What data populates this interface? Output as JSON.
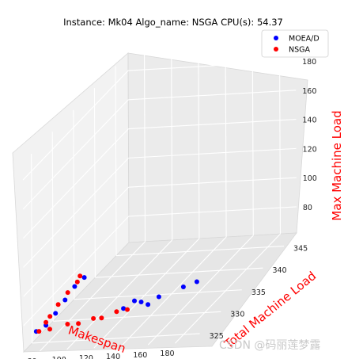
{
  "chart_data": {
    "type": "scatter",
    "title": "Instance: Mk04 Algo_name: NSGA CPU(s): 54.37",
    "xlabel": "Makespan",
    "ylabel": "Total Machine Load",
    "zlabel": "Max Machine Load",
    "xticks": [
      "80",
      "100",
      "120",
      "140",
      "160",
      "180"
    ],
    "yticks": [
      "325",
      "330",
      "335",
      "340",
      "345"
    ],
    "zticks": [
      "80",
      "100",
      "120",
      "140",
      "160",
      "180"
    ],
    "grid": true,
    "legend_position": "top-right",
    "series": [
      {
        "name": "MOEA/D",
        "color": "#0000ff",
        "points": [
          {
            "x": 68,
            "y": 326,
            "z": 67
          },
          {
            "x": 72,
            "y": 327,
            "z": 68
          },
          {
            "x": 76,
            "y": 328,
            "z": 73
          },
          {
            "x": 80,
            "y": 329,
            "z": 79
          },
          {
            "x": 84,
            "y": 330,
            "z": 85
          },
          {
            "x": 88,
            "y": 331,
            "z": 88
          },
          {
            "x": 120,
            "y": 330,
            "z": 68
          },
          {
            "x": 125,
            "y": 331,
            "z": 70
          },
          {
            "x": 130,
            "y": 331,
            "z": 69
          },
          {
            "x": 135,
            "y": 331,
            "z": 67
          },
          {
            "x": 140,
            "y": 332,
            "z": 69
          },
          {
            "x": 155,
            "y": 333,
            "z": 72
          },
          {
            "x": 165,
            "y": 333,
            "z": 75
          }
        ]
      },
      {
        "name": "NSGA",
        "color": "#ff0000",
        "points": [
          {
            "x": 70,
            "y": 326,
            "z": 67
          },
          {
            "x": 72,
            "y": 327,
            "z": 70
          },
          {
            "x": 75,
            "y": 327,
            "z": 74
          },
          {
            "x": 78,
            "y": 328,
            "z": 79
          },
          {
            "x": 82,
            "y": 329,
            "z": 84
          },
          {
            "x": 86,
            "y": 330,
            "z": 88
          },
          {
            "x": 88,
            "y": 330,
            "z": 92
          },
          {
            "x": 78,
            "y": 326,
            "z": 68
          },
          {
            "x": 88,
            "y": 327,
            "z": 68
          },
          {
            "x": 96,
            "y": 327,
            "z": 68
          },
          {
            "x": 104,
            "y": 328,
            "z": 68
          },
          {
            "x": 110,
            "y": 328,
            "z": 68
          },
          {
            "x": 118,
            "y": 329,
            "z": 69
          },
          {
            "x": 126,
            "y": 329,
            "z": 70
          }
        ]
      }
    ]
  },
  "watermark": "CSDN @码丽莲梦露"
}
